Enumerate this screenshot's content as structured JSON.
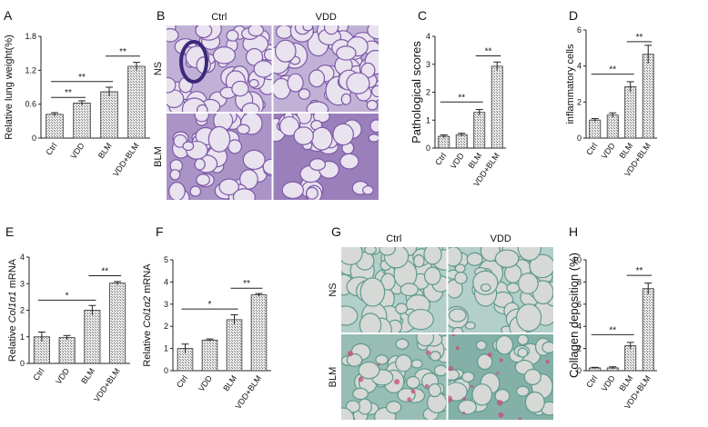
{
  "chart_data": [
    {
      "panel": "A",
      "type": "bar",
      "ylabel": "Relative lung weight(%)",
      "categories": [
        "Ctrl",
        "VDD",
        "BLM",
        "VDD+BLM"
      ],
      "values": [
        0.42,
        0.62,
        0.82,
        1.27
      ],
      "errors": [
        0.03,
        0.04,
        0.08,
        0.07
      ],
      "ylim": [
        0,
        1.8
      ],
      "yticks": [
        "0",
        "0.6",
        "1.2",
        "1.8"
      ],
      "significance": [
        {
          "from": 0,
          "to": 1,
          "label": "**",
          "y": 0.72
        },
        {
          "from": 0,
          "to": 2,
          "label": "**",
          "y": 1.0
        },
        {
          "from": 2,
          "to": 3,
          "label": "**",
          "y": 1.45
        }
      ]
    },
    {
      "panel": "C",
      "type": "bar",
      "ylabel": "Pathological scores",
      "categories": [
        "Ctrl",
        "VDD",
        "BLM",
        "VDD+BLM"
      ],
      "values": [
        0.42,
        0.48,
        1.28,
        2.93
      ],
      "errors": [
        0.05,
        0.05,
        0.1,
        0.15
      ],
      "ylim": [
        0,
        4
      ],
      "yticks": [
        "0",
        "1",
        "2",
        "3",
        "4"
      ],
      "significance": [
        {
          "from": 0,
          "to": 2,
          "label": "**",
          "y": 1.65
        },
        {
          "from": 2,
          "to": 3,
          "label": "**",
          "y": 3.3
        }
      ]
    },
    {
      "panel": "D",
      "type": "bar",
      "ylabel": "inflammatory cells",
      "categories": [
        "Ctrl",
        "VDD",
        "BLM",
        "VDD+BLM"
      ],
      "values": [
        1.0,
        1.28,
        2.85,
        4.65
      ],
      "errors": [
        0.08,
        0.12,
        0.28,
        0.5
      ],
      "ylim": [
        0,
        6
      ],
      "yticks": [
        "0",
        "2",
        "4",
        "6"
      ],
      "significance": [
        {
          "from": 0,
          "to": 2,
          "label": "**",
          "y": 3.55
        },
        {
          "from": 2,
          "to": 3,
          "label": "**",
          "y": 5.35
        }
      ]
    },
    {
      "panel": "E",
      "type": "bar",
      "ylabel_parts": [
        "Relative ",
        "Col1α1",
        " mRNA"
      ],
      "categories": [
        "Ctrl",
        "VDD",
        "BLM",
        "VDD+BLM"
      ],
      "values": [
        1.0,
        0.97,
        2.0,
        3.02
      ],
      "errors": [
        0.18,
        0.08,
        0.18,
        0.06
      ],
      "ylim": [
        0,
        4
      ],
      "yticks": [
        "0",
        "1",
        "2",
        "3",
        "4"
      ],
      "significance": [
        {
          "from": 0,
          "to": 2,
          "label": "*",
          "y": 2.38
        },
        {
          "from": 2,
          "to": 3,
          "label": "**",
          "y": 3.3
        }
      ]
    },
    {
      "panel": "F",
      "type": "bar",
      "ylabel_parts": [
        "Relative ",
        "Col1α2",
        " mRNA"
      ],
      "categories": [
        "Ctrl",
        "VDD",
        "BLM",
        "VDD+BLM"
      ],
      "values": [
        1.0,
        1.38,
        2.3,
        3.42
      ],
      "errors": [
        0.2,
        0.05,
        0.22,
        0.06
      ],
      "ylim": [
        0,
        5
      ],
      "yticks": [
        "0",
        "1",
        "2",
        "3",
        "4",
        "5"
      ],
      "significance": [
        {
          "from": 0,
          "to": 2,
          "label": "*",
          "y": 2.78
        },
        {
          "from": 2,
          "to": 3,
          "label": "**",
          "y": 3.72
        }
      ]
    },
    {
      "panel": "H",
      "type": "bar",
      "ylabel": "Collagen deposition (%)",
      "categories": [
        "Ctrl",
        "VDD",
        "BLM",
        "VDD+BLM"
      ],
      "values": [
        0.25,
        0.25,
        2.25,
        7.4
      ],
      "errors": [
        0.05,
        0.1,
        0.3,
        0.5
      ],
      "ylim": [
        0,
        10
      ],
      "yticks": [
        "0",
        "2",
        "4",
        "6",
        "8",
        "10"
      ],
      "significance": [
        {
          "from": 0,
          "to": 2,
          "label": "**",
          "y": 3.25
        },
        {
          "from": 2,
          "to": 3,
          "label": "**",
          "y": 8.6
        }
      ]
    }
  ],
  "micrographs": [
    {
      "panel": "B",
      "stain": "H&E",
      "columns": [
        "Ctrl",
        "VDD"
      ],
      "rows": [
        "NS",
        "BLM"
      ],
      "colors": {
        "bg": "#e9e2ef",
        "tissue": "#7d5aa8",
        "dark": "#3b2a7a"
      }
    },
    {
      "panel": "G",
      "stain": "Sirius red / fast green",
      "columns": [
        "Ctrl",
        "VDD"
      ],
      "rows": [
        "NS",
        "BLM"
      ],
      "colors": {
        "bg": "#d6d9d6",
        "tissue": "#5f9a8e",
        "red": "#c84f7a"
      }
    }
  ]
}
